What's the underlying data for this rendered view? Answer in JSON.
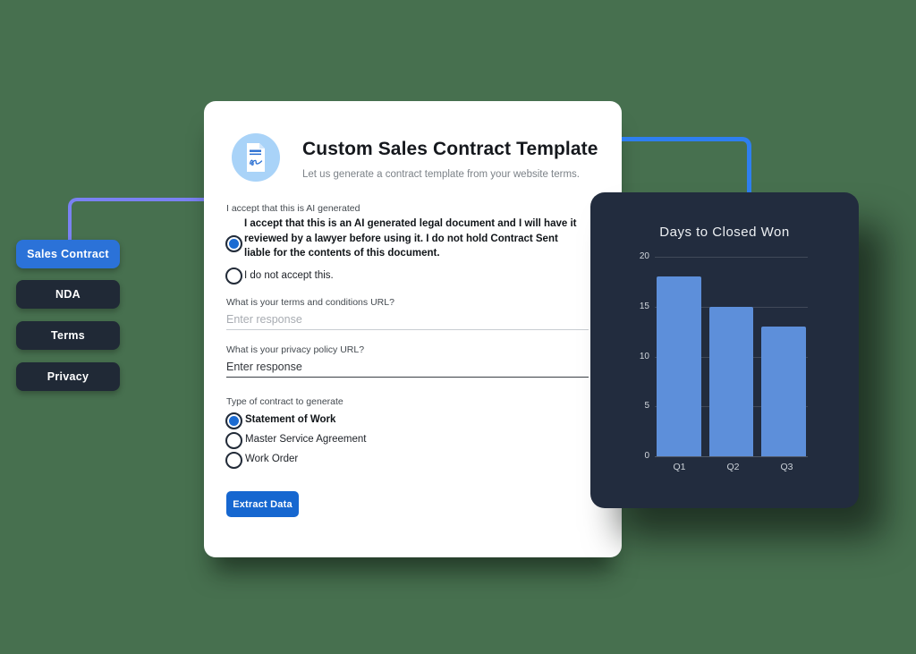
{
  "colors": {
    "background": "#47704f",
    "accent_blue": "#1b6bd2",
    "sidebar_active_bg": "#2b72d8",
    "sidebar_dark_bg": "#202936",
    "connector_left": "#7a81f2",
    "connector_right": "#2e7ff0",
    "chart_card_bg": "#222c3e",
    "bar_color": "#5d8fda"
  },
  "sidebar": {
    "items": [
      {
        "label": "Sales Contract",
        "active": true
      },
      {
        "label": "NDA",
        "active": false
      },
      {
        "label": "Terms",
        "active": false
      },
      {
        "label": "Privacy",
        "active": false
      }
    ]
  },
  "form_card": {
    "icon": "document-signature-icon",
    "title": "Custom Sales Contract Template",
    "subtitle": "Let us generate a contract template from your website terms.",
    "accept_group": {
      "label": "I accept that this is AI generated",
      "options": [
        {
          "label": "I accept that this is an AI generated legal document and I will have it reviewed by a lawyer before using it. I do not hold Contract Sent liable for the contents of this document.",
          "selected": true
        },
        {
          "label": "I do not accept this.",
          "selected": false
        }
      ]
    },
    "terms_url_field": {
      "label": "What is your terms and conditions URL?",
      "placeholder": "Enter response"
    },
    "privacy_url_field": {
      "label": "What is your privacy policy URL?",
      "value": "Enter response"
    },
    "contract_type_group": {
      "label": "Type of contract to generate",
      "options": [
        {
          "label": "Statement of Work",
          "selected": true
        },
        {
          "label": "Master Service Agreement",
          "selected": false
        },
        {
          "label": "Work Order",
          "selected": false
        }
      ]
    },
    "submit_button": "Extract Data"
  },
  "chart_data": {
    "type": "bar",
    "title": "Days to Closed Won",
    "categories": [
      "Q1",
      "Q2",
      "Q3"
    ],
    "values": [
      18,
      15,
      13
    ],
    "xlabel": "",
    "ylabel": "",
    "ylim": [
      0,
      20
    ],
    "yticks": [
      20,
      15,
      10,
      5,
      0
    ],
    "grid": true,
    "legend": false
  }
}
